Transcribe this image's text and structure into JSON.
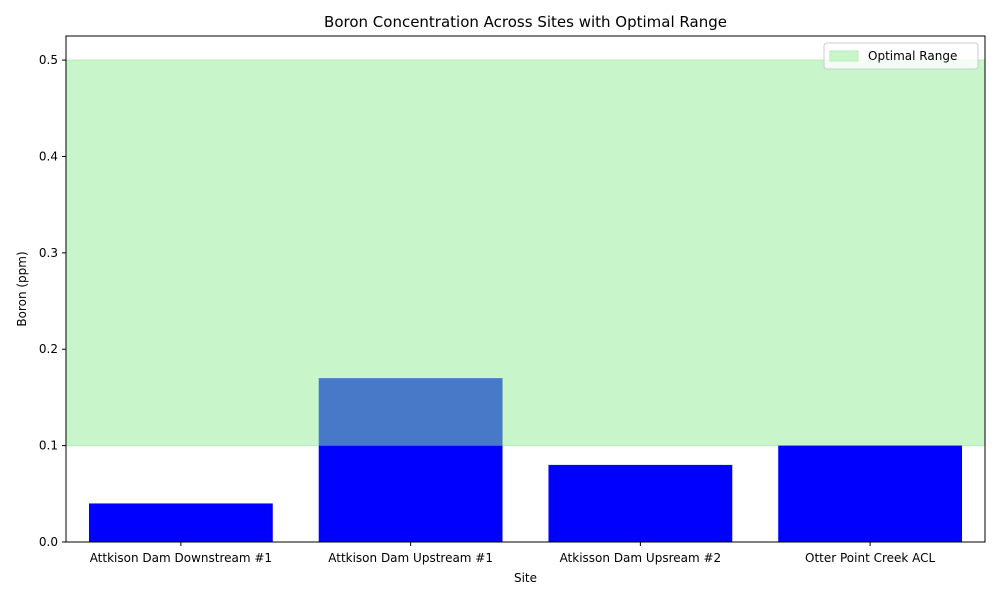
{
  "chart_data": {
    "type": "bar",
    "title": "Boron Concentration Across Sites with Optimal Range",
    "xlabel": "Site",
    "ylabel": "Boron (ppm)",
    "categories": [
      "Attkison Dam Downstream #1",
      "Attkison Dam Upstream #1",
      "Atkisson Dam Upsream #2",
      "Otter Point Creek ACL"
    ],
    "values": [
      0.04,
      0.17,
      0.08,
      0.1
    ],
    "ylim": [
      0,
      0.525
    ],
    "yticks": [
      0.0,
      0.1,
      0.2,
      0.3,
      0.4,
      0.5
    ],
    "ytick_labels": [
      "0.0",
      "0.1",
      "0.2",
      "0.3",
      "0.4",
      "0.5"
    ],
    "optimal_range": {
      "name": "Optimal Range",
      "low": 0.1,
      "high": 0.5
    },
    "legend_position": "top-right",
    "grid": false,
    "colors": {
      "bar": "#0000ff",
      "bar_in_range": "#4878c8",
      "range_fill": "#c8f6ca",
      "range_edge": "#b4eeb6"
    }
  }
}
